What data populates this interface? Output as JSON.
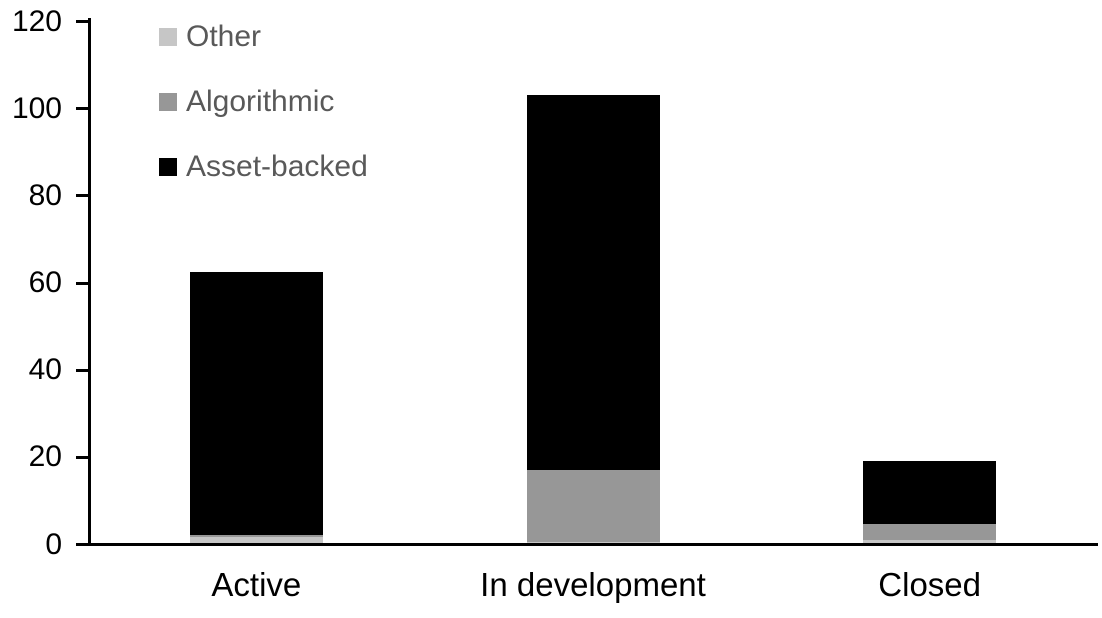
{
  "chart_data": {
    "type": "bar",
    "stacked": true,
    "title": "",
    "xlabel": "",
    "ylabel": "",
    "categories": [
      "Active",
      "In development",
      "Closed"
    ],
    "series": [
      {
        "name": "Asset-backed",
        "color": "#000000",
        "values": [
          62.5,
          103,
          19
        ]
      },
      {
        "name": "Algorithmic",
        "color": "#979797",
        "values": [
          2,
          17,
          4.5
        ]
      },
      {
        "name": "Other",
        "color": "#c6c6c6",
        "values": [
          1.5,
          0.5,
          1
        ]
      }
    ],
    "y_axis": {
      "ticks": [
        0,
        20,
        40,
        60,
        80,
        100,
        120
      ],
      "range": [
        0,
        120
      ]
    },
    "legend": {
      "position": "top-left",
      "order_top_to_bottom": [
        "Other",
        "Algorithmic",
        "Asset-backed"
      ],
      "text_color": "#595959"
    },
    "grid": false,
    "axis_color": "#000000",
    "background": "#ffffff"
  }
}
